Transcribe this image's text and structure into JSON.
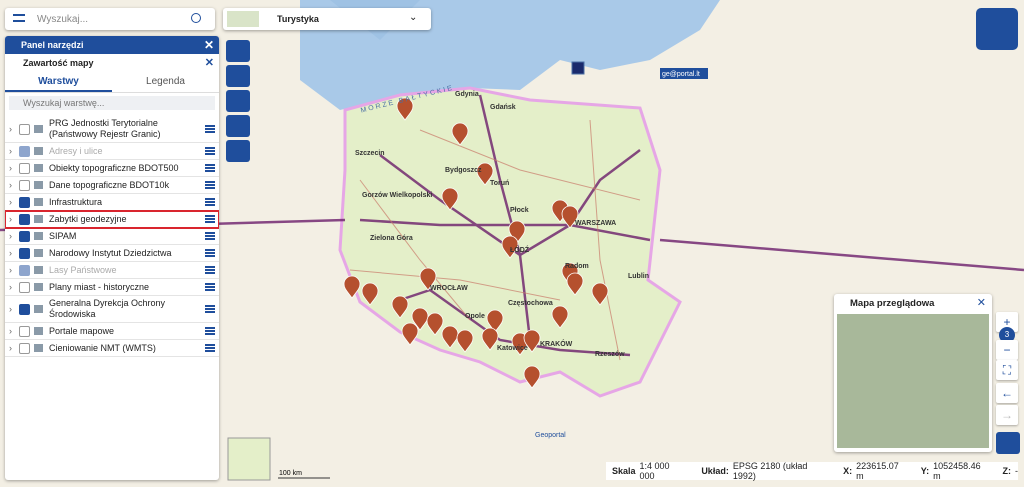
{
  "search": {
    "placeholder": "Wyszukaj..."
  },
  "basemap": "Turystyka",
  "panel": {
    "title": "Panel narzędzi",
    "section": "Zawartość mapy",
    "tabs": [
      "Warstwy",
      "Legenda"
    ],
    "layer_search": "Wyszukaj warstwę...",
    "layers": [
      {
        "name": "PRG Jednostki Terytorialne (Państwowy Rejestr Granic)",
        "checked": false,
        "disabled": false
      },
      {
        "name": "Adresy i ulice",
        "checked": true,
        "disabled": true
      },
      {
        "name": "Obiekty topograficzne BDOT500",
        "checked": false,
        "disabled": false
      },
      {
        "name": "Dane topograficzne BDOT10k",
        "checked": false,
        "disabled": false
      },
      {
        "name": "Infrastruktura",
        "checked": true,
        "disabled": false
      },
      {
        "name": "Zabytki geodezyjne",
        "checked": true,
        "disabled": false,
        "highlighted": true
      },
      {
        "name": "SIPAM",
        "checked": true,
        "disabled": false
      },
      {
        "name": "Narodowy Instytut Dziedzictwa",
        "checked": true,
        "disabled": false
      },
      {
        "name": "Lasy Państwowe",
        "checked": true,
        "disabled": true
      },
      {
        "name": "Plany miast - historyczne",
        "checked": false,
        "disabled": false
      },
      {
        "name": "Generalna Dyrekcja Ochrony Środowiska",
        "checked": true,
        "disabled": false
      },
      {
        "name": "Portale mapowe",
        "checked": false,
        "disabled": false
      },
      {
        "name": "Cieniowanie NMT (WMTS)",
        "checked": false,
        "disabled": false
      }
    ]
  },
  "map": {
    "sea": "MORZE BAŁTYCKIE",
    "cities": [
      "Gdynia",
      "Gdańsk",
      "Szczecin",
      "Bydgoszcz",
      "Toruń",
      "Gorzów Wielkopolski",
      "Płock",
      "WARSZAWA",
      "Zielona Góra",
      "ŁÓDŹ",
      "Radom",
      "Lublin",
      "WROCŁAW",
      "Częstochowa",
      "Opole",
      "Katowice",
      "KRAKÓW",
      "Rzeszów"
    ],
    "attribution": "ge@portal.lt",
    "geoportal": "Geoportal",
    "scale_bar": "100 km"
  },
  "overview": {
    "title": "Mapa przeglądowa"
  },
  "zoom_level": "3",
  "status": {
    "scale_label": "Skala",
    "scale": "1:4 000 000",
    "crs_label": "Układ:",
    "crs": "EPSG 2180 (układ 1992)",
    "x_label": "X:",
    "x": "223615.07 m",
    "y_label": "Y:",
    "y": "1052458.46 m",
    "z_label": "Z:",
    "z": "-"
  }
}
